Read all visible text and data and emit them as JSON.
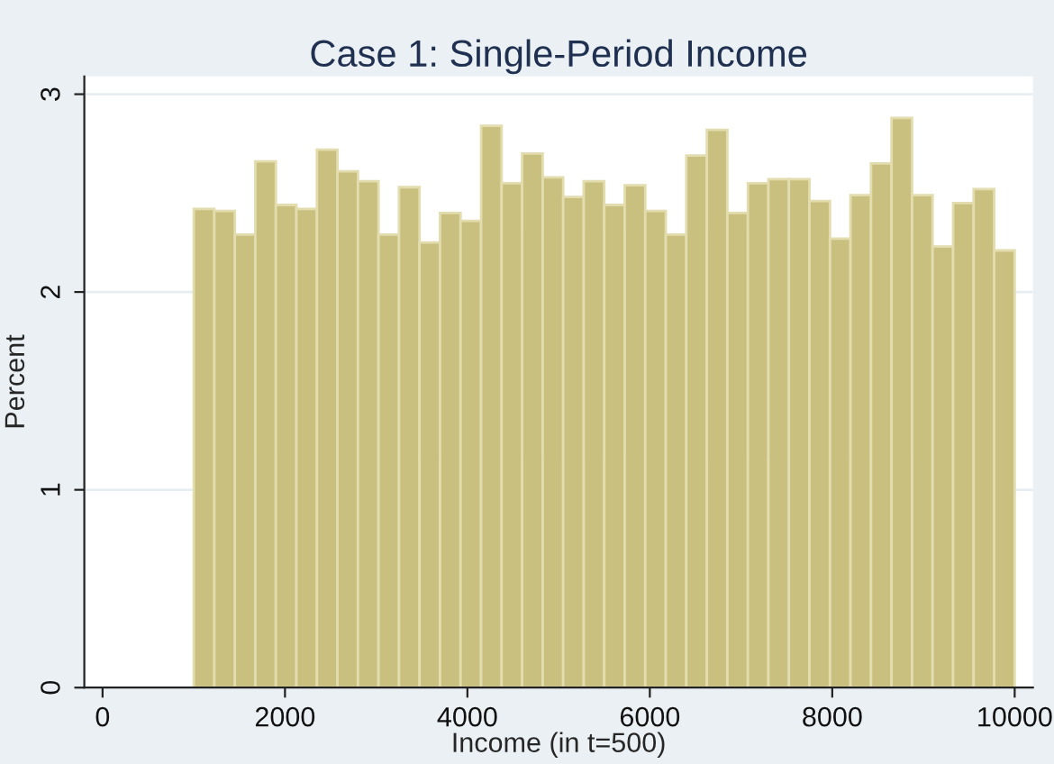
{
  "chart_data": {
    "type": "histogram",
    "title": "Case 1: Single-Period Income",
    "xlabel": "Income (in t=500)",
    "ylabel": "Percent",
    "bins": [
      1000,
      1225,
      1450,
      1675,
      1900,
      2125,
      2350,
      2575,
      2800,
      3025,
      3250,
      3475,
      3700,
      3925,
      4150,
      4375,
      4600,
      4825,
      5050,
      5275,
      5500,
      5725,
      5950,
      6175,
      6400,
      6625,
      6850,
      7075,
      7300,
      7525,
      7750,
      7975,
      8200,
      8425,
      8650,
      8875,
      9100,
      9325,
      9550,
      9775,
      10000
    ],
    "values": [
      2.42,
      2.41,
      2.29,
      2.66,
      2.44,
      2.42,
      2.72,
      2.61,
      2.56,
      2.29,
      2.53,
      2.25,
      2.4,
      2.36,
      2.84,
      2.55,
      2.7,
      2.58,
      2.48,
      2.56,
      2.44,
      2.54,
      2.41,
      2.29,
      2.69,
      2.82,
      2.4,
      2.55,
      2.57,
      2.57,
      2.46,
      2.27,
      2.49,
      2.65,
      2.88,
      2.49,
      2.23,
      2.45,
      2.52,
      2.21
    ],
    "color": "#c9c07f",
    "xlim": [
      -200,
      10200
    ],
    "ylim": [
      0,
      3.09
    ],
    "xticks": [
      0,
      2000,
      4000,
      6000,
      8000,
      10000
    ],
    "yticks": [
      0,
      1,
      2,
      3
    ],
    "grid": "y"
  }
}
